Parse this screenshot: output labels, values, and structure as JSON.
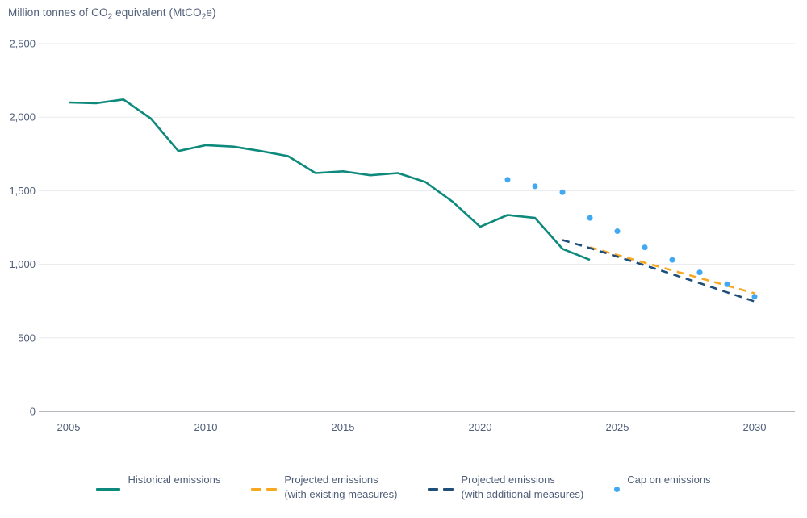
{
  "header": {
    "title": {
      "p1": "Million tonnes of CO",
      "sub1": "2",
      "p2": " equivalent (MtCO",
      "sub2": "2",
      "p3": "e)"
    }
  },
  "colors": {
    "background": "#ffffff",
    "text": "#4f5e78",
    "grid": "#e9eaec",
    "axis": "#b4b7bc",
    "historical": "#0d8a7c",
    "projected_existing": "#f8a81e",
    "projected_additional": "#1f4e79",
    "cap": "#41a9f1"
  },
  "chart_data": {
    "type": "line",
    "title": "Million tonnes of CO2 equivalent (MtCO2e)",
    "xlabel": "",
    "ylabel": "Million tonnes of CO2 equivalent (MtCO2e)",
    "xlim": [
      2005,
      2030
    ],
    "ylim": [
      0,
      2500
    ],
    "grid": "horizontal gridlines every 500; zero axis line darker",
    "legend_position": "bottom-center",
    "x_ticks": [
      2005,
      2010,
      2015,
      2020,
      2025,
      2030
    ],
    "y_ticks": [
      0,
      500,
      1000,
      1500,
      2000,
      2500
    ],
    "y_tick_labels": [
      "0",
      "500",
      "1,000",
      "1,500",
      "2,000",
      "2,500"
    ],
    "series": [
      {
        "id": "historical",
        "name": "Historical emissions",
        "type": "line",
        "style": "solid",
        "color": "#0d8a7c",
        "x": [
          2005,
          2006,
          2007,
          2008,
          2009,
          2010,
          2011,
          2012,
          2013,
          2014,
          2015,
          2016,
          2017,
          2018,
          2019,
          2020,
          2021,
          2022,
          2023,
          2024
        ],
        "y": [
          2100,
          2095,
          2120,
          1990,
          1770,
          1810,
          1800,
          1770,
          1735,
          1620,
          1632,
          1605,
          1620,
          1560,
          1425,
          1255,
          1335,
          1315,
          1105,
          1030
        ]
      },
      {
        "id": "projected-existing",
        "name": "Projected emissions (with existing measures)",
        "type": "line",
        "style": "dashed",
        "color": "#f8a81e",
        "x": [
          2024,
          2025,
          2026,
          2027,
          2028,
          2029,
          2030
        ],
        "y": [
          1115,
          1063,
          1011,
          959,
          907,
          855,
          803
        ]
      },
      {
        "id": "projected-additional",
        "name": "Projected emissions (with additional measures)",
        "type": "line",
        "style": "dashed",
        "color": "#1f4e79",
        "x": [
          2023,
          2024,
          2025,
          2026,
          2027,
          2028,
          2029,
          2030
        ],
        "y": [
          1165,
          1110,
          1052,
          993,
          933,
          872,
          810,
          748
        ]
      },
      {
        "id": "cap",
        "name": "Cap on emissions",
        "type": "scatter",
        "color": "#41a9f1",
        "x": [
          2021,
          2022,
          2023,
          2024,
          2025,
          2026,
          2027,
          2028,
          2029,
          2030
        ],
        "y": [
          1575,
          1530,
          1490,
          1315,
          1225,
          1115,
          1030,
          945,
          865,
          780
        ]
      }
    ],
    "legend": [
      {
        "line1": "Historical emissions",
        "line2": ""
      },
      {
        "line1": "Projected emissions",
        "line2": "(with existing measures)"
      },
      {
        "line1": "Projected emissions",
        "line2": "(with additional measures)"
      },
      {
        "line1": "Cap on emissions",
        "line2": ""
      }
    ]
  }
}
